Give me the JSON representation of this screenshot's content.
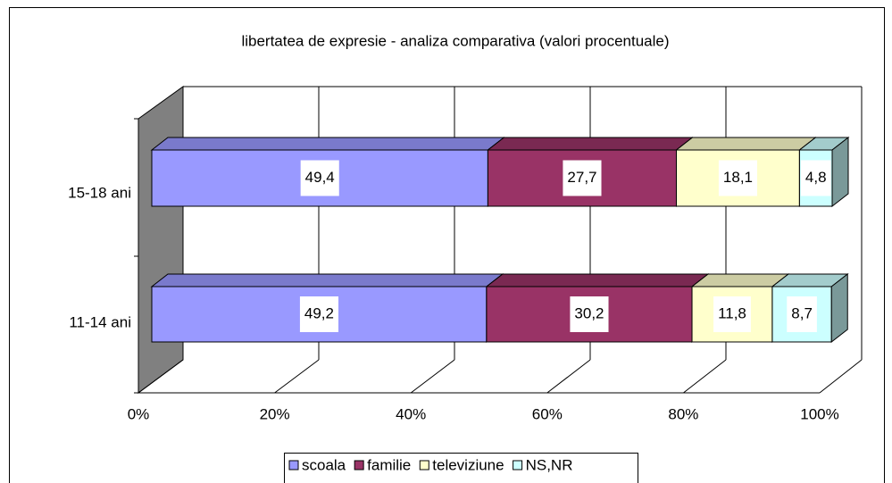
{
  "chart_data": {
    "type": "stacked_bar_3d",
    "title": "libertatea de expresie - analiza comparativa (valori procentuale)",
    "categories": [
      "15-18 ani",
      "11-14 ani"
    ],
    "series": [
      {
        "name": "scoala",
        "color": "#9999ff",
        "values": [
          49.4,
          49.2
        ],
        "value_labels": [
          "49,4",
          "49,2"
        ]
      },
      {
        "name": "familie",
        "color": "#993366",
        "values": [
          27.7,
          30.2
        ],
        "value_labels": [
          "27,7",
          "30,2"
        ]
      },
      {
        "name": "televiziune",
        "color": "#ffffcc",
        "values": [
          18.1,
          11.8
        ],
        "value_labels": [
          "18,1",
          "11,8"
        ]
      },
      {
        "name": "NS,NR",
        "color": "#ccffff",
        "values": [
          4.8,
          8.7
        ],
        "value_labels": [
          "4,8",
          "8,7"
        ]
      }
    ],
    "xlim": [
      0,
      100
    ],
    "xticks": [
      {
        "value": 0,
        "label": "0%"
      },
      {
        "value": 20,
        "label": "20%"
      },
      {
        "value": 40,
        "label": "40%"
      },
      {
        "value": 60,
        "label": "60%"
      },
      {
        "value": 80,
        "label": "80%"
      },
      {
        "value": 100,
        "label": "100%"
      }
    ],
    "grid": true,
    "legend": "bottom"
  }
}
